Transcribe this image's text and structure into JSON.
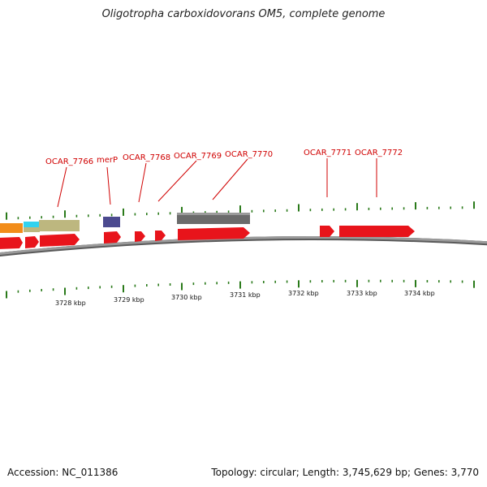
{
  "title": "Oligotropha carboxidovorans OM5, complete genome",
  "footer": {
    "accession": "Accession: NC_011386",
    "summary": "Topology: circular; Length: 3,745,629 bp; Genes: 3,770"
  },
  "colors": {
    "gene_label": "#d00000",
    "cds_red": "#e8141b",
    "backbone": "#8a8a8a",
    "tick_green": "#2a7a1a",
    "orange": "#f28c1a",
    "cyan": "#31d2f0",
    "khaki": "#bdb77f",
    "purple": "#4b4a8f",
    "dark_gray": "#6b6b6b"
  },
  "gene_labels": [
    "OCAR_7766",
    "merP",
    "OCAR_7768",
    "OCAR_7769",
    "OCAR_7770",
    "OCAR_7771",
    "OCAR_7772"
  ],
  "kbp_labels": [
    "3728 kbp",
    "3729 kbp",
    "3730 kbp",
    "3731 kbp",
    "3732 kbp",
    "3733 kbp",
    "3734 kbp"
  ]
}
